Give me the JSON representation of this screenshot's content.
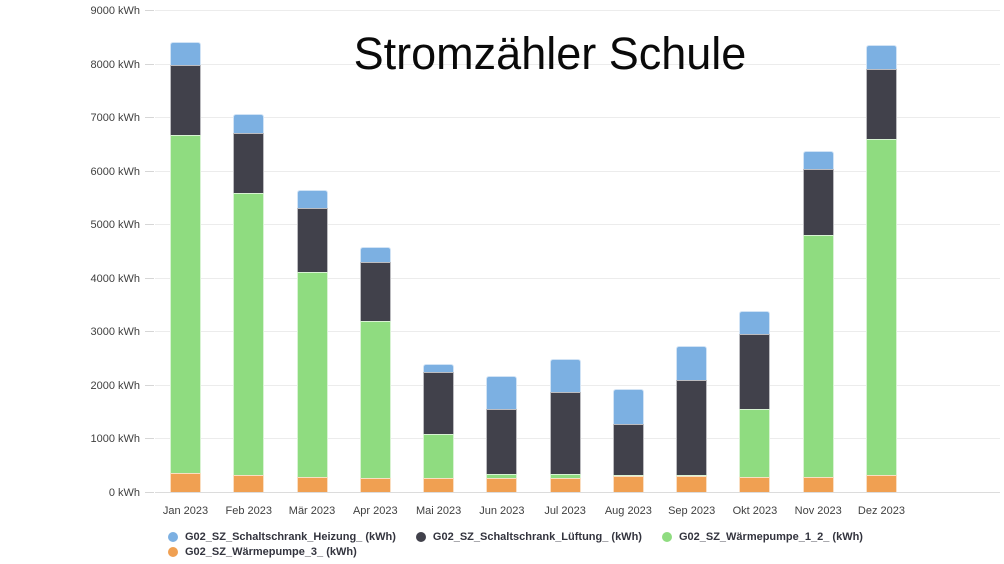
{
  "chart_data": {
    "type": "bar",
    "stacked": true,
    "title": "Stromzähler Schule",
    "xlabel": "",
    "ylabel": "",
    "ylim": [
      0,
      9000
    ],
    "y_tick_step": 1000,
    "y_unit": "kWh",
    "grid": true,
    "categories": [
      "Jan 2023",
      "Feb 2023",
      "Mär 2023",
      "Apr 2023",
      "Mai 2023",
      "Jun 2023",
      "Jul 2023",
      "Aug 2023",
      "Sep 2023",
      "Okt 2023",
      "Nov 2023",
      "Dez 2023"
    ],
    "series": [
      {
        "name": "G02_SZ_Wärmepumpe_3_ (kWh)",
        "color": "#F0A052",
        "stack_position": "bottom",
        "values": [
          355,
          320,
          280,
          260,
          255,
          260,
          260,
          290,
          305,
          275,
          275,
          320
        ]
      },
      {
        "name": "G02_SZ_Wärmepumpe_1_2_ (kWh)",
        "color": "#8FDC80",
        "stack_position": "second",
        "values": [
          6315,
          5260,
          3820,
          2930,
          825,
          80,
          80,
          20,
          20,
          1275,
          4515,
          6280
        ]
      },
      {
        "name": "G02_SZ_Schaltschrank_Lüftung_ (kWh)",
        "color": "#41414B",
        "stack_position": "third",
        "values": [
          1305,
          1130,
          1200,
          1100,
          1160,
          1210,
          1520,
          960,
          1775,
          1400,
          1240,
          1300
        ]
      },
      {
        "name": "G02_SZ_Schaltschrank_Heizung_ (kWh)",
        "color": "#7CB0E2",
        "stack_position": "top",
        "values": [
          425,
          350,
          340,
          280,
          160,
          610,
          630,
          650,
          620,
          425,
          345,
          450
        ]
      }
    ],
    "totals": [
      8400,
      7060,
      5640,
      4570,
      2400,
      2160,
      2490,
      1920,
      2720,
      3375,
      6375,
      8350
    ],
    "y_tick_labels": [
      "0 kWh",
      "1000 kWh",
      "2000 kWh",
      "3000 kWh",
      "4000 kWh",
      "5000 kWh",
      "6000 kWh",
      "7000 kWh",
      "8000 kWh",
      "9000 kWh"
    ],
    "legend": {
      "position": "bottom",
      "items": [
        {
          "label": "G02_SZ_Schaltschrank_Heizung_ (kWh)",
          "color": "#7CB0E2"
        },
        {
          "label": "G02_SZ_Schaltschrank_Lüftung_ (kWh)",
          "color": "#41414B"
        },
        {
          "label": "G02_SZ_Wärmepumpe_1_2_ (kWh)",
          "color": "#8FDC80"
        },
        {
          "label": "G02_SZ_Wärmepumpe_3_ (kWh)",
          "color": "#F0A052"
        }
      ]
    }
  }
}
